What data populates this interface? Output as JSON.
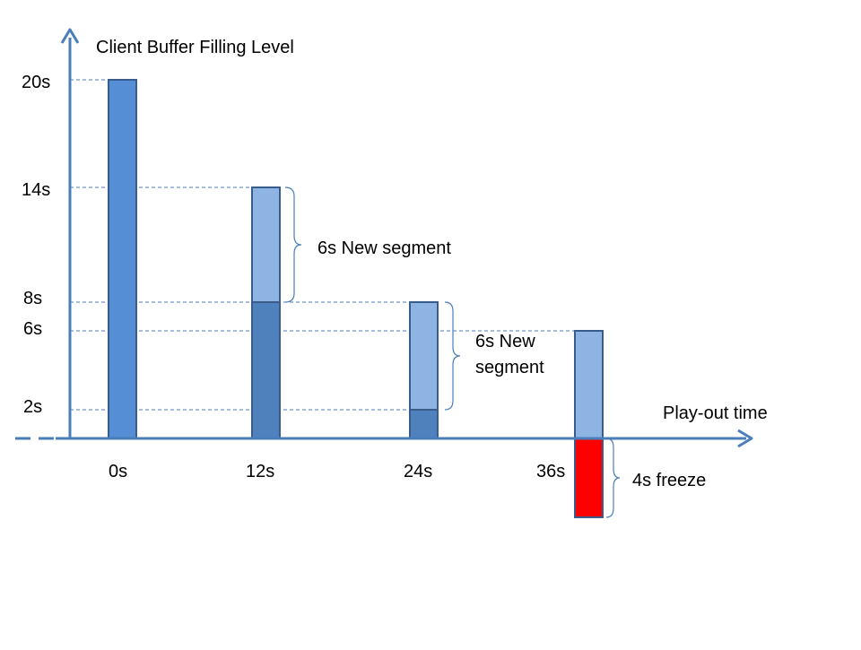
{
  "diagram": {
    "y_axis_title": "Client Buffer Filling Level",
    "x_axis_title": "Play-out time",
    "y_ticks": [
      "20s",
      "14s",
      "8s",
      "6s",
      "2s"
    ],
    "x_ticks": [
      "0s",
      "12s",
      "24s",
      "36s"
    ],
    "annotations": {
      "new_segment_1": "6s New segment",
      "new_segment_2_line1": "6s New",
      "new_segment_2_line2": "segment",
      "freeze": "4s freeze"
    },
    "colors": {
      "axis": "#4a7ebb",
      "bar_full": "#558ed5",
      "bar_remaining": "#4f81bd",
      "bar_new_segment": "#8eb4e3",
      "bar_border": "#385d8a",
      "freeze": "#ff0000"
    }
  }
}
